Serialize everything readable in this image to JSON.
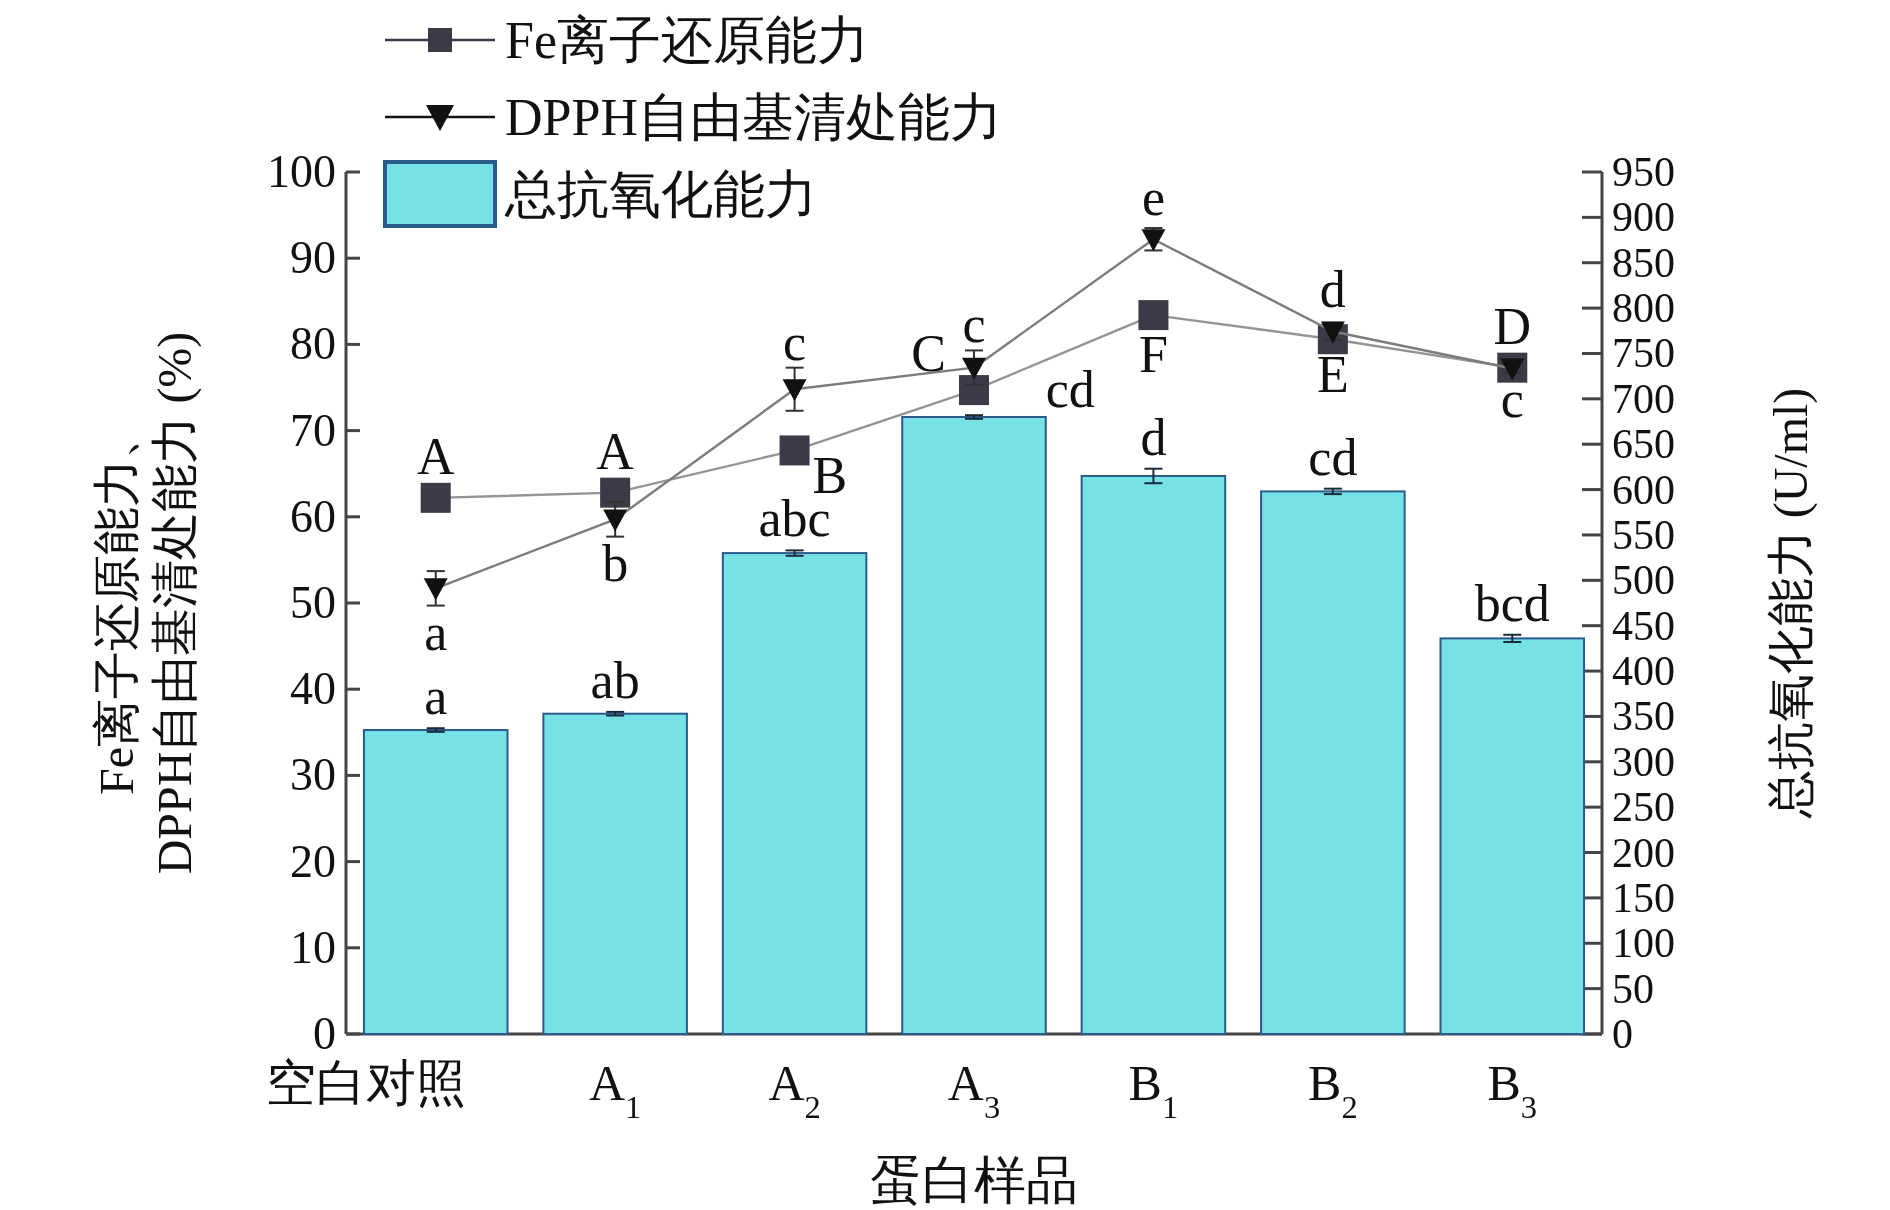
{
  "chart_data": {
    "type": "bar",
    "xlabel": "蛋白样品",
    "ylabel": "Fe离子还原能力、\nDPPH自由基清处能力 (%)",
    "y2label": "总抗氧化能力 (U/ml)",
    "categories": [
      "空白对照",
      "A$_{1}$",
      "A$_{2}$",
      "A$_{3}$",
      "B$_{1}$",
      "B$_{2}$",
      "B$_{3}$"
    ],
    "series": [
      {
        "name": "Fe离子还原能力",
        "type": "line",
        "color": "#3b3b48",
        "marker": "square",
        "values": [
          62.2,
          62.8,
          67.7,
          74.7,
          83.4,
          80.6,
          77.3
        ],
        "errors": [
          0.5,
          0.8,
          0.5,
          1,
          1.5,
          1,
          0.5
        ]
      },
      {
        "name": "DPPH自由基清处能力",
        "type": "line",
        "color": "#111111",
        "marker": "triangle",
        "values": [
          51.7,
          59.7,
          74.8,
          77.3,
          92.2,
          81.5,
          77.2
        ],
        "errors": [
          2,
          2,
          2.5,
          2,
          1.3,
          1,
          0.5
        ]
      },
      {
        "name": "总抗氧化能力",
        "axis": "y2",
        "color": "#76e2e6",
        "values": [
          335,
          353,
          530,
          680,
          615,
          598,
          436
        ],
        "errors": [
          2,
          2,
          3,
          2,
          8,
          3,
          4
        ]
      }
    ],
    "ylim": [
      0,
      100
    ],
    "yticks": [
      0,
      10,
      20,
      30,
      40,
      50,
      60,
      70,
      80,
      90,
      100
    ],
    "y2lim": [
      0,
      950
    ],
    "y2ticks": [
      0,
      50,
      100,
      150,
      200,
      250,
      300,
      350,
      400,
      450,
      500,
      550,
      600,
      650,
      700,
      750,
      800,
      850,
      900,
      950
    ],
    "legend": "top left",
    "annotations": [
      {
        "text": "A",
        "x": "空白对照",
        "y": 62.2
      },
      {
        "text": "a",
        "x": "空白对照",
        "y": 51.7
      },
      "a",
      {
        "text": "A",
        "x": "A$_{1}$",
        "y": 62.8
      },
      {
        "text": "b",
        "x": "A$_{1}$",
        "y": 59.7
      },
      "ab",
      {
        "text": "c",
        "x": "A$_{2}$",
        "y": 74.8
      },
      {
        "text": "B",
        "x": "A$_{2}$",
        "y": 67.7
      },
      "abc",
      {
        "text": "C",
        "x": "A$_{3}$",
        "y": 74.7
      },
      {
        "text": "c",
        "x": "A$_{3}$",
        "y": 77.3
      },
      "cd",
      {
        "text": "e",
        "x": "B$_{1}$",
        "y": 92.2
      },
      {
        "text": "F",
        "x": "B$_{1}$",
        "y": 83.4
      },
      "d",
      {
        "text": "d",
        "x": "B$_{2}$",
        "y": 81.5
      },
      {
        "text": "E",
        "x": "B$_{2}$",
        "y": 80.6
      },
      "cd",
      {
        "text": "D",
        "x": "B$_{3}$",
        "y": 77.3
      },
      {
        "text": "c",
        "x": "B$_{3}$",
        "y": 77.2
      },
      "bcd"
    ]
  }
}
